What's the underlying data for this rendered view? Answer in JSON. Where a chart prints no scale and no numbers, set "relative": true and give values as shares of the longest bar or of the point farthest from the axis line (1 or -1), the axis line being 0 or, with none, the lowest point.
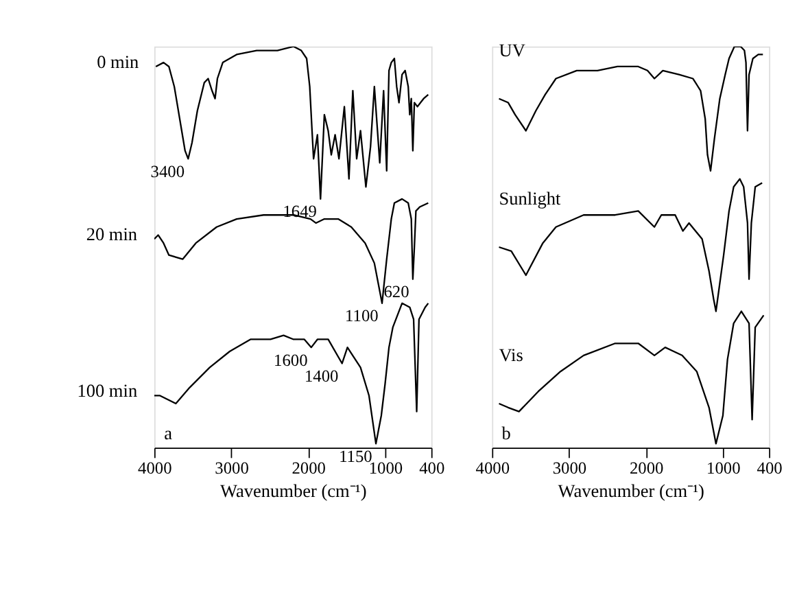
{
  "chart_data": [
    {
      "type": "line",
      "relative": true,
      "xlabel": "Wavenumber (cm⁻¹)",
      "xlim": [
        4000,
        400
      ],
      "xticks": [
        4000,
        3000,
        2000,
        1000,
        400
      ],
      "grid": false,
      "series": [
        {
          "name": "0 min",
          "color": "#000000",
          "x": [
            3980,
            3880,
            3810,
            3740,
            3670,
            3600,
            3560,
            3510,
            3440,
            3350,
            3300,
            3250,
            3210,
            3180,
            3110,
            2930,
            2670,
            2400,
            2190,
            2090,
            2020,
            1980,
            1950,
            1930,
            1880,
            1840,
            1790,
            1740,
            1700,
            1650,
            1600,
            1530,
            1470,
            1420,
            1370,
            1320,
            1250,
            1190,
            1140,
            1070,
            1020,
            980,
            950,
            920,
            880,
            850,
            820,
            780,
            740,
            700,
            680,
            660,
            640,
            620,
            580,
            540,
            500,
            440
          ],
          "values": [
            0.95,
            0.96,
            0.95,
            0.9,
            0.82,
            0.74,
            0.72,
            0.76,
            0.84,
            0.91,
            0.92,
            0.89,
            0.87,
            0.92,
            0.96,
            0.98,
            0.99,
            0.99,
            1.0,
            0.99,
            0.97,
            0.9,
            0.79,
            0.72,
            0.78,
            0.62,
            0.83,
            0.79,
            0.73,
            0.78,
            0.72,
            0.85,
            0.67,
            0.89,
            0.72,
            0.79,
            0.65,
            0.75,
            0.9,
            0.71,
            0.89,
            0.69,
            0.94,
            0.96,
            0.97,
            0.9,
            0.86,
            0.93,
            0.94,
            0.9,
            0.83,
            0.87,
            0.74,
            0.86,
            0.85,
            0.86,
            0.87,
            0.88
          ]
        },
        {
          "name": "20 min",
          "color": "#000000",
          "x": [
            4000,
            3950,
            3880,
            3810,
            3630,
            3460,
            3190,
            2930,
            2580,
            2400,
            2190,
            1970,
            1900,
            1790,
            1610,
            1440,
            1260,
            1140,
            1070,
            1040,
            980,
            920,
            880,
            780,
            700,
            660,
            640,
            620,
            600,
            550,
            440
          ],
          "values": [
            0.52,
            0.53,
            0.51,
            0.48,
            0.47,
            0.51,
            0.55,
            0.57,
            0.58,
            0.58,
            0.58,
            0.57,
            0.56,
            0.57,
            0.57,
            0.55,
            0.51,
            0.46,
            0.39,
            0.36,
            0.47,
            0.57,
            0.61,
            0.62,
            0.61,
            0.57,
            0.42,
            0.5,
            0.59,
            0.6,
            0.61
          ]
        },
        {
          "name": "100 min",
          "color": "#000000",
          "x": [
            4000,
            3930,
            3720,
            3540,
            3280,
            3020,
            2750,
            2490,
            2320,
            2190,
            2050,
            1960,
            1880,
            1740,
            1560,
            1490,
            1320,
            1210,
            1120,
            1050,
            1000,
            950,
            900,
            780,
            680,
            630,
            590,
            560,
            480,
            440
          ],
          "values": [
            0.13,
            0.13,
            0.11,
            0.15,
            0.2,
            0.24,
            0.27,
            0.27,
            0.28,
            0.27,
            0.27,
            0.25,
            0.27,
            0.27,
            0.21,
            0.25,
            0.2,
            0.13,
            0.01,
            0.08,
            0.16,
            0.25,
            0.3,
            0.36,
            0.35,
            0.32,
            0.09,
            0.32,
            0.35,
            0.36
          ]
        }
      ],
      "annotations": [
        {
          "text": "3400",
          "x": 3560,
          "y": 0.72
        },
        {
          "text": "1649",
          "x": 1840,
          "y": 0.62
        },
        {
          "text": "1100",
          "x": 1040,
          "y": 0.36
        },
        {
          "text": "620",
          "x": 640,
          "y": 0.42
        },
        {
          "text": "1600",
          "x": 1960,
          "y": 0.25
        },
        {
          "text": "1400",
          "x": 1560,
          "y": 0.21
        },
        {
          "text": "1150",
          "x": 1120,
          "y": 0.01
        },
        "a"
      ]
    },
    {
      "type": "line",
      "relative": true,
      "xlabel": "Wavenumber (cm⁻¹)",
      "xlim": [
        4000,
        400
      ],
      "xticks": [
        4000,
        3000,
        2000,
        1000,
        400
      ],
      "grid": false,
      "series": [
        {
          "name": "UV",
          "color": "#000000",
          "x": [
            3910,
            3790,
            3700,
            3560,
            3430,
            3310,
            3170,
            2900,
            2630,
            2370,
            2100,
            1980,
            1890,
            1780,
            1570,
            1390,
            1290,
            1230,
            1200,
            1160,
            1110,
            1040,
            970,
            920,
            850,
            770,
            720,
            700,
            680,
            660,
            610,
            540,
            480
          ],
          "values": [
            0.87,
            0.86,
            0.83,
            0.79,
            0.84,
            0.88,
            0.92,
            0.94,
            0.94,
            0.95,
            0.95,
            0.94,
            0.92,
            0.94,
            0.93,
            0.92,
            0.89,
            0.82,
            0.73,
            0.69,
            0.77,
            0.87,
            0.93,
            0.97,
            1.0,
            1.0,
            0.99,
            0.96,
            0.79,
            0.93,
            0.97,
            0.98,
            0.98
          ]
        },
        {
          "name": "Sunlight",
          "color": "#000000",
          "x": [
            3910,
            3750,
            3560,
            3340,
            3170,
            2810,
            2400,
            2100,
            1890,
            1800,
            1620,
            1520,
            1440,
            1270,
            1180,
            1120,
            1090,
            990,
            920,
            860,
            780,
            730,
            680,
            660,
            630,
            580,
            490
          ],
          "values": [
            0.5,
            0.49,
            0.43,
            0.51,
            0.55,
            0.58,
            0.58,
            0.59,
            0.55,
            0.58,
            0.58,
            0.54,
            0.56,
            0.52,
            0.44,
            0.37,
            0.34,
            0.48,
            0.59,
            0.65,
            0.67,
            0.65,
            0.56,
            0.42,
            0.56,
            0.65,
            0.66
          ]
        },
        {
          "name": "Vis",
          "color": "#000000",
          "x": [
            3910,
            3790,
            3650,
            3400,
            3110,
            2810,
            2400,
            2100,
            1890,
            1750,
            1530,
            1340,
            1180,
            1090,
            1000,
            940,
            860,
            760,
            660,
            620,
            580,
            470
          ],
          "values": [
            0.11,
            0.1,
            0.09,
            0.14,
            0.19,
            0.23,
            0.26,
            0.26,
            0.23,
            0.25,
            0.23,
            0.19,
            0.1,
            0.01,
            0.08,
            0.22,
            0.31,
            0.34,
            0.31,
            0.07,
            0.3,
            0.33
          ]
        }
      ],
      "annotations": [
        "b"
      ]
    }
  ]
}
